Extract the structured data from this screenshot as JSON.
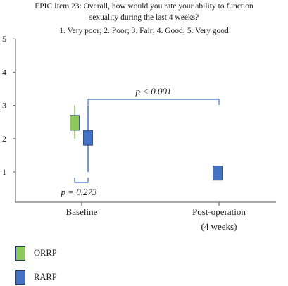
{
  "chart_data": {
    "type": "box",
    "title": "EPIC Item 23: Overall, how would you rate your ability to function",
    "title_line2": "sexuality during the last 4 weeks?",
    "subtitle": "1. Very poor; 2. Poor; 3. Fair; 4. Good; 5. Very good",
    "categories": [
      "Baseline",
      "Post-operation",
      "(4 weeks)"
    ],
    "ylim": [
      0.5,
      5
    ],
    "yticks": [
      "1",
      "2",
      "3",
      "4",
      "5"
    ],
    "series": [
      {
        "name": "ORRP",
        "color": "#8dc95a",
        "boxes": [
          {
            "category": "Baseline",
            "whisker_low": 2.0,
            "q1": 2.25,
            "q3": 2.7,
            "whisker_high": 3.0
          }
        ]
      },
      {
        "name": "RARP",
        "color": "#4472c4",
        "boxes": [
          {
            "category": "Baseline",
            "whisker_low": 1.0,
            "q1": 1.8,
            "q3": 2.25,
            "whisker_high": 3.0
          },
          {
            "category": "Post-operation",
            "whisker_low": 0.75,
            "q1": 0.75,
            "q3": 1.18,
            "whisker_high": 1.18
          }
        ]
      }
    ],
    "annotations": [
      {
        "text": "p < 0.001",
        "between": [
          "Baseline",
          "Post-operation"
        ]
      },
      {
        "text": "p = 0.273",
        "between": [
          "ORRP",
          "RARP"
        ]
      }
    ]
  }
}
